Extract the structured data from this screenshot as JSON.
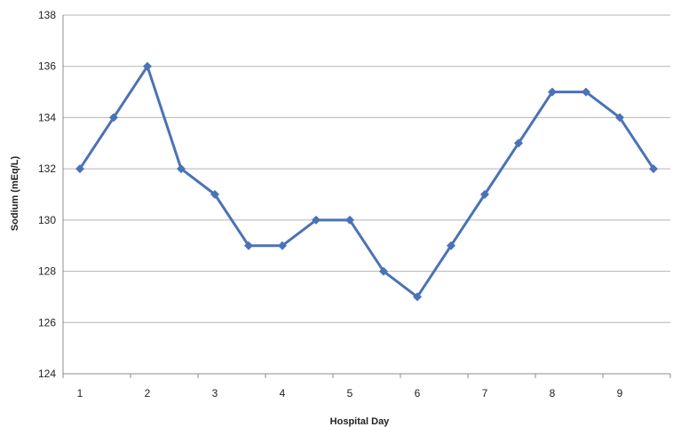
{
  "colors": {
    "series": "#4a72b8",
    "grid": "#b5b5b5",
    "axis": "#8c8c8c",
    "text": "#222222"
  },
  "chart_data": {
    "type": "line",
    "title": "",
    "xlabel": "Hospital Day",
    "ylabel": "Sodium (mEq/L)",
    "x_ticks": [
      "1",
      "2",
      "3",
      "4",
      "5",
      "6",
      "7",
      "8",
      "9"
    ],
    "xlim": [
      1,
      9.5
    ],
    "ylim": [
      124,
      138
    ],
    "y_ticks": [
      124,
      126,
      128,
      130,
      132,
      134,
      136,
      138
    ],
    "grid": true,
    "legend": "none",
    "marker": "diamond",
    "series": [
      {
        "x": [
          1,
          1.5,
          2,
          2.5,
          3,
          3.5,
          4,
          4.5,
          5,
          5.5,
          6,
          6.5,
          7,
          7.5,
          8,
          8.5,
          9,
          9.5
        ],
        "values": [
          132,
          134,
          136,
          132,
          131,
          129,
          129,
          130,
          130,
          128,
          127,
          129,
          131,
          133,
          135,
          135,
          134,
          132
        ]
      }
    ]
  }
}
